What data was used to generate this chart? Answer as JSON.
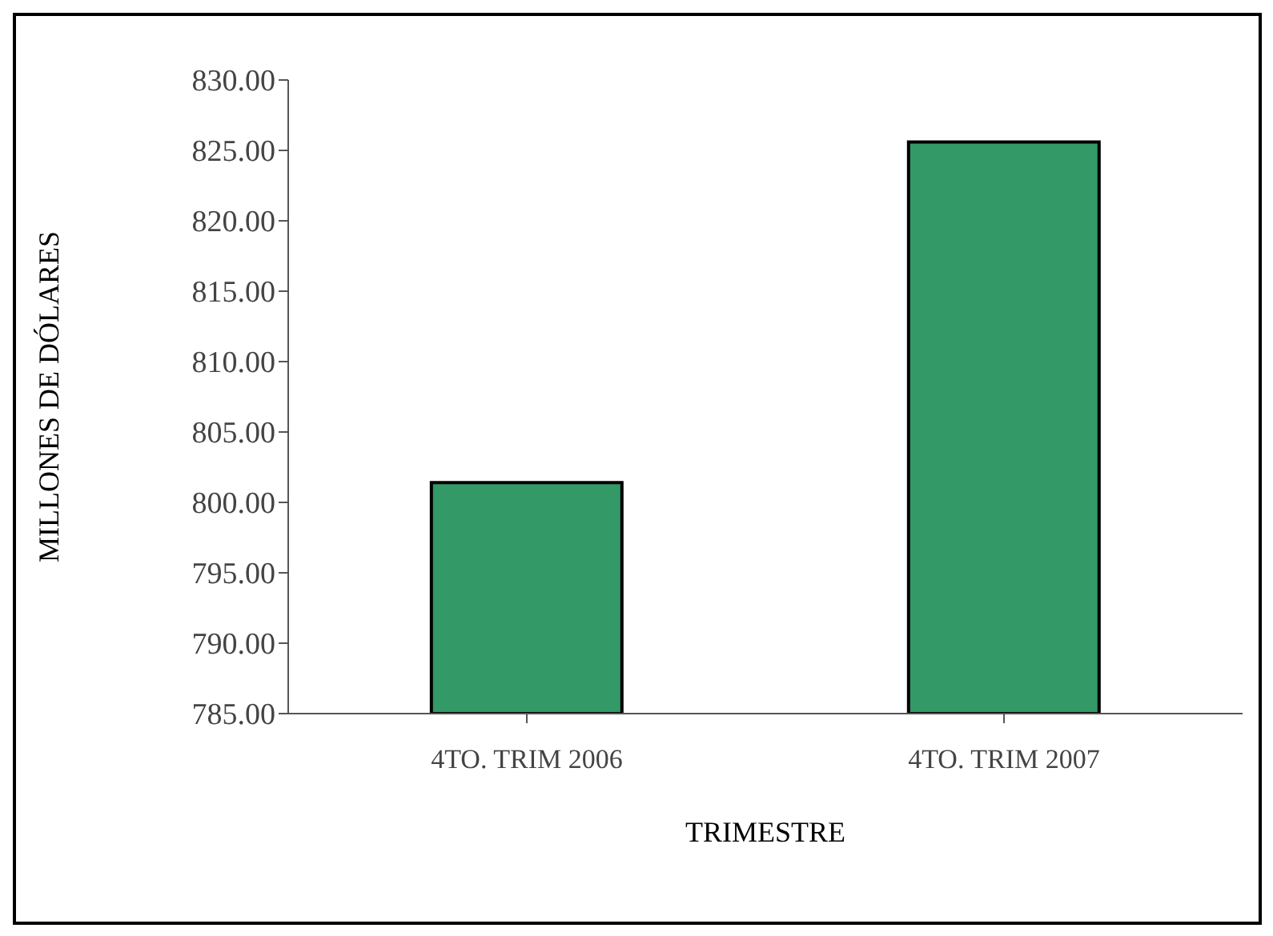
{
  "chart_data": {
    "type": "bar",
    "xlabel": "TRIMESTRE",
    "ylabel": "MILLONES DE DÓLARES",
    "categories": [
      "4TO.  TRIM  2006",
      "4TO.  TRIM  2007"
    ],
    "values": [
      801.4,
      825.6
    ],
    "color": "#339966",
    "ylim": [
      785,
      830
    ],
    "yticks": [
      {
        "value": 785,
        "label": "785.00"
      },
      {
        "value": 790,
        "label": "790.00"
      },
      {
        "value": 795,
        "label": "795.00"
      },
      {
        "value": 800,
        "label": "800.00"
      },
      {
        "value": 805,
        "label": "805.00"
      },
      {
        "value": 810,
        "label": "810.00"
      },
      {
        "value": 815,
        "label": "815.00"
      },
      {
        "value": 820,
        "label": "820.00"
      },
      {
        "value": 825,
        "label": "825.00"
      },
      {
        "value": 830,
        "label": "830.00"
      }
    ],
    "grid": false,
    "legend": false
  }
}
